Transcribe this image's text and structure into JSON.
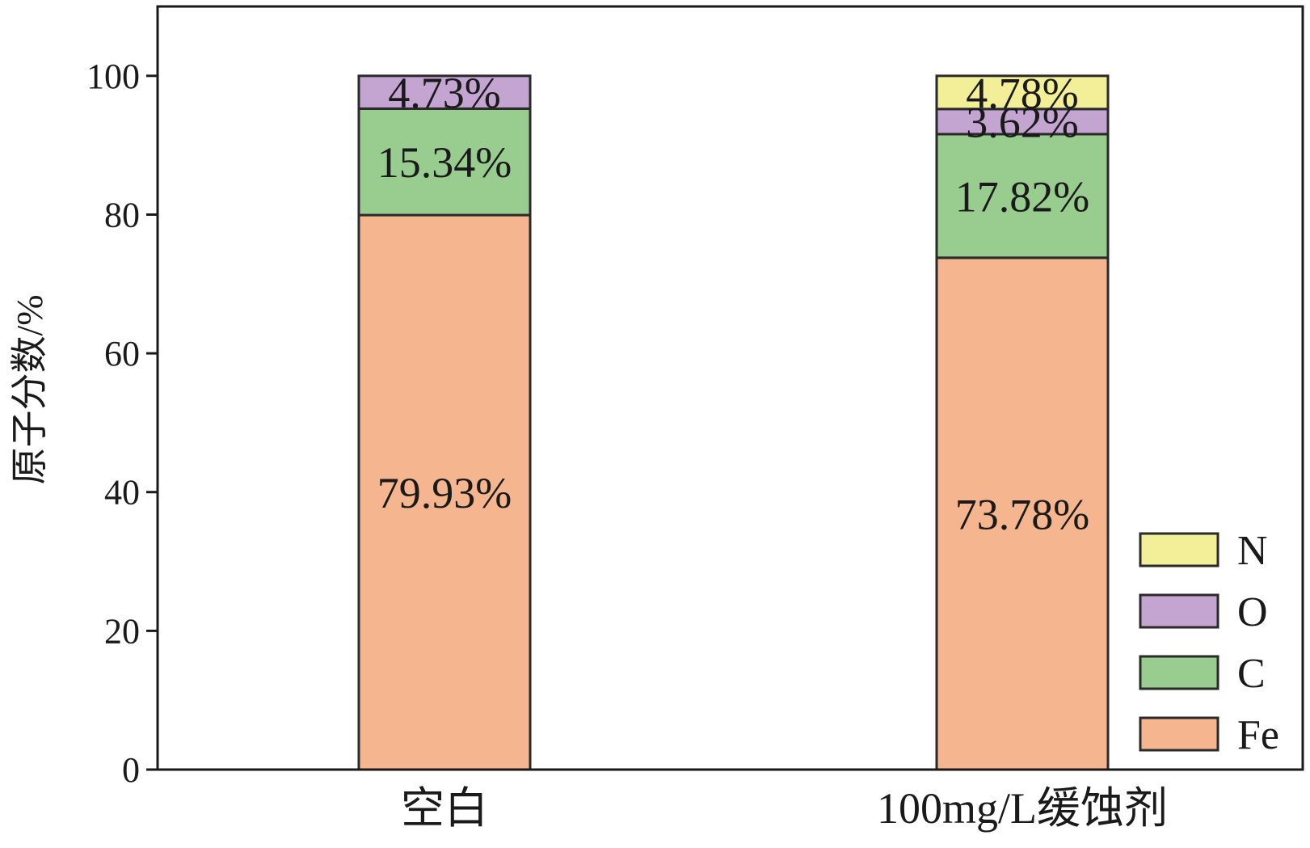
{
  "chart_data": {
    "type": "bar",
    "stacked": true,
    "title": "",
    "xlabel": "",
    "ylabel": "原子分数/%",
    "ylim": [
      0,
      110
    ],
    "yticks": [
      0,
      20,
      40,
      60,
      80,
      100
    ],
    "categories": [
      "空白",
      "100mg/L缓蚀剂"
    ],
    "series": [
      {
        "name": "Fe",
        "color": "#f5b58e",
        "values": [
          79.93,
          73.78
        ],
        "labels": [
          "79.93%",
          "73.78%"
        ]
      },
      {
        "name": "C",
        "color": "#99cc8f",
        "values": [
          15.34,
          17.82
        ],
        "labels": [
          "15.34%",
          "17.82%"
        ]
      },
      {
        "name": "O",
        "color": "#c4a5d2",
        "values": [
          4.73,
          3.62
        ],
        "labels": [
          "4.73%",
          "3.62%"
        ]
      },
      {
        "name": "N",
        "color": "#f2ef98",
        "values": [
          0,
          4.78
        ],
        "labels": [
          "",
          "4.78%"
        ]
      }
    ],
    "legend": {
      "position": "bottom-right",
      "order": [
        "N",
        "O",
        "C",
        "Fe"
      ]
    },
    "grid": false
  }
}
